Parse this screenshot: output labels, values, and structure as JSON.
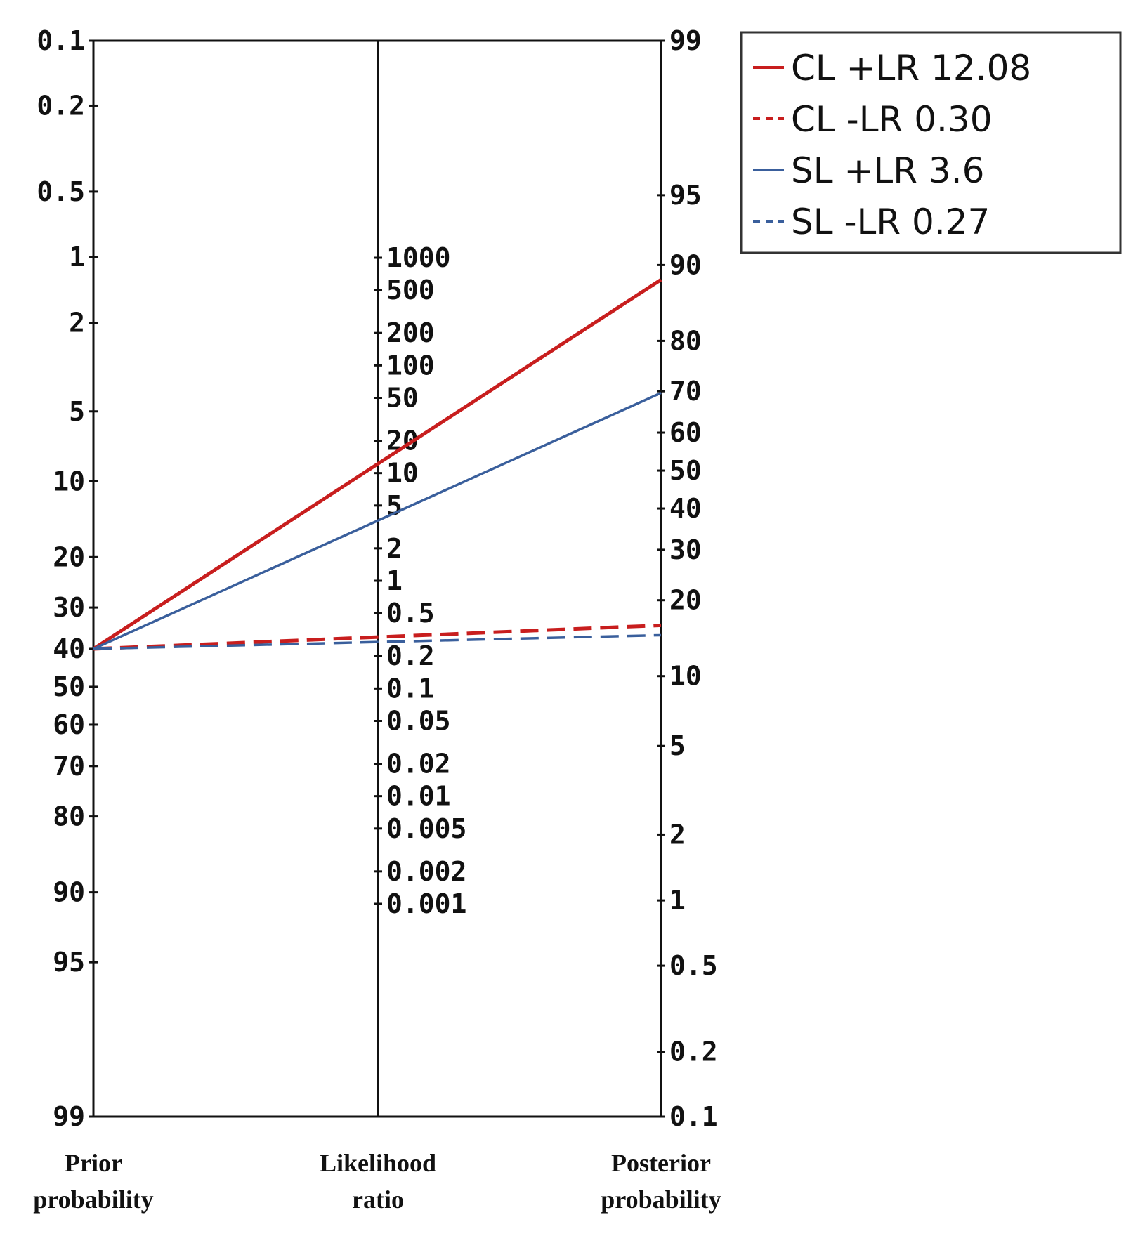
{
  "chart_data": {
    "type": "line",
    "subtype": "Fagan nomogram",
    "axes": [
      {
        "id": "prior",
        "title": [
          "Prior",
          "probability"
        ],
        "scale": "log-odds",
        "direction": "top-to-bottom",
        "ticks": [
          0.1,
          0.2,
          0.5,
          1,
          2,
          5,
          10,
          20,
          30,
          40,
          50,
          60,
          70,
          80,
          90,
          95,
          99
        ],
        "tick_labels": [
          "0.1",
          "0.2",
          "0.5",
          "1",
          "2",
          "5",
          "10",
          "20",
          "30",
          "40",
          "50",
          "60",
          "70",
          "80",
          "90",
          "95",
          "99"
        ]
      },
      {
        "id": "lr",
        "title": [
          "Likelihood",
          "ratio"
        ],
        "scale": "log",
        "direction": "bottom-to-top",
        "ticks": [
          0.001,
          0.002,
          0.005,
          0.01,
          0.02,
          0.05,
          0.1,
          0.2,
          0.5,
          1,
          2,
          5,
          10,
          20,
          50,
          100,
          200,
          500,
          1000
        ],
        "tick_labels": [
          "0.001",
          "0.002",
          "0.005",
          "0.01",
          "0.02",
          "0.05",
          "0.1",
          "0.2",
          "0.5",
          "1",
          "2",
          "5",
          "10",
          "20",
          "50",
          "100",
          "200",
          "500",
          "1000"
        ]
      },
      {
        "id": "posterior",
        "title": [
          "Posterior",
          "probability"
        ],
        "scale": "log-odds",
        "direction": "bottom-to-top",
        "ticks": [
          0.1,
          0.2,
          0.5,
          1,
          2,
          5,
          10,
          20,
          30,
          40,
          50,
          60,
          70,
          80,
          90,
          95,
          99
        ],
        "tick_labels": [
          "0.1",
          "0.2",
          "0.5",
          "1",
          "2",
          "5",
          "10",
          "20",
          "30",
          "40",
          "50",
          "60",
          "70",
          "80",
          "90",
          "95",
          "99"
        ]
      }
    ],
    "series": [
      {
        "name": "CL +LR 12.08",
        "color": "#c81e1e",
        "style": "solid",
        "prior": 40,
        "lr": 12.08,
        "posterior": 89
      },
      {
        "name": "CL -LR 0.30",
        "color": "#c81e1e",
        "style": "dashed",
        "prior": 40,
        "lr": 0.3,
        "posterior": 17
      },
      {
        "name": "SL +LR 3.6",
        "color": "#3a5f9c",
        "style": "solid",
        "prior": 40,
        "lr": 3.6,
        "posterior": 70
      },
      {
        "name": "SL -LR 0.27",
        "color": "#3a5f9c",
        "style": "dashed",
        "prior": 40,
        "lr": 0.27,
        "posterior": 15
      }
    ],
    "legend_position": "top-right",
    "grid": false
  }
}
